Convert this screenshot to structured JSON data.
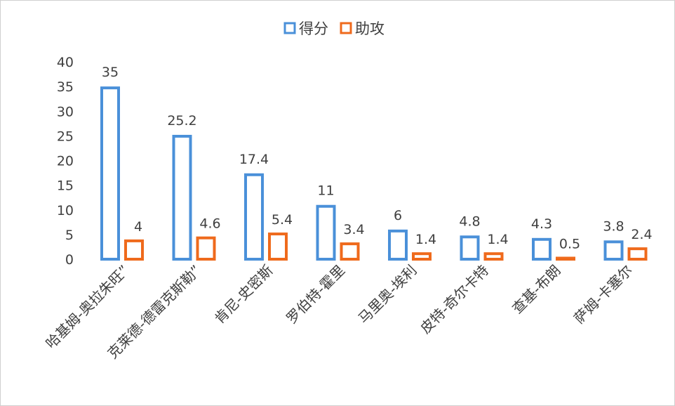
{
  "chart_data": {
    "type": "bar",
    "title": "",
    "xlabel": "",
    "ylabel": "",
    "ylim": [
      0,
      40
    ],
    "yticks": [
      0,
      5,
      10,
      15,
      20,
      25,
      30,
      35,
      40
    ],
    "grid": false,
    "legend_position": "top",
    "bar_style": "hollow outline",
    "categories": [
      "哈基姆-奥拉朱旺”",
      "克莱德-德雷克斯勒”",
      "肯尼-史密斯",
      "罗伯特-霍里",
      "马里奥-埃利",
      "皮特-奇尔卡特",
      "查基-布朗",
      "萨姆-卡塞尔"
    ],
    "series": [
      {
        "name": "得分",
        "color": "#4a90d9",
        "values": [
          35,
          25.2,
          17.4,
          11,
          6,
          4.8,
          4.3,
          3.8
        ]
      },
      {
        "name": "助攻",
        "color": "#ef6a1c",
        "values": [
          4,
          4.6,
          5.4,
          3.4,
          1.4,
          1.4,
          0.5,
          2.4
        ]
      }
    ]
  }
}
